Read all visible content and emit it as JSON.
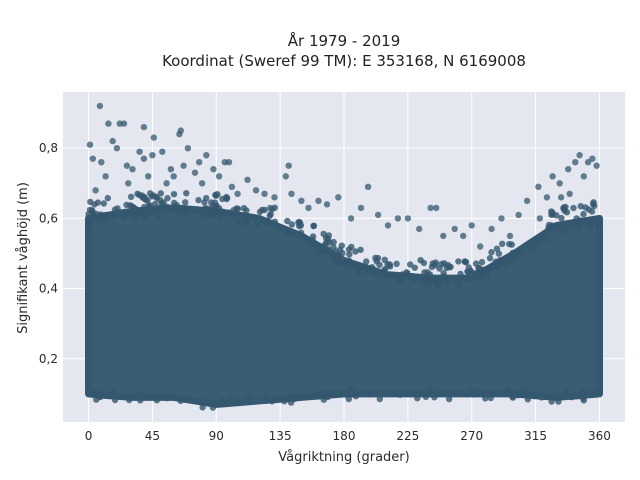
{
  "chart_data": {
    "type": "scatter",
    "title": "År 1979 - 2019",
    "subtitle": "Koordinat (Sweref 99 TM): E 353168, N 6169008",
    "xlabel": "Vågriktning (grader)",
    "ylabel": "Signifikant våghöjd (m)",
    "xlim": [
      -18,
      378
    ],
    "ylim": [
      0.02,
      0.96
    ],
    "xticks": [
      0,
      45,
      90,
      135,
      180,
      225,
      270,
      315,
      360
    ],
    "xtick_labels": [
      "0",
      "45",
      "90",
      "135",
      "180",
      "225",
      "270",
      "315",
      "360"
    ],
    "yticks": [
      0.2,
      0.4,
      0.6,
      0.8
    ],
    "ytick_labels": [
      "0,2",
      "0,4",
      "0,6",
      "0,8"
    ],
    "grid": true,
    "legend": "none",
    "colors": {
      "marker": "#34586f",
      "plot_bg": "#e5e7f0",
      "grid": "#ffffff"
    },
    "density_band": {
      "note_direction_deg": [
        0,
        30,
        60,
        90,
        120,
        150,
        180,
        210,
        240,
        270,
        300,
        330,
        360
      ],
      "dense_lower_m": [
        0.1,
        0.09,
        0.09,
        0.07,
        0.08,
        0.09,
        0.1,
        0.1,
        0.1,
        0.1,
        0.1,
        0.09,
        0.1
      ],
      "dense_upper_m": [
        0.6,
        0.62,
        0.63,
        0.62,
        0.6,
        0.55,
        0.48,
        0.44,
        0.43,
        0.43,
        0.5,
        0.58,
        0.6
      ]
    },
    "points": [
      [
        8,
        0.92
      ],
      [
        14,
        0.87
      ],
      [
        22,
        0.87
      ],
      [
        25,
        0.87
      ],
      [
        17,
        0.82
      ],
      [
        20,
        0.8
      ],
      [
        1,
        0.81
      ],
      [
        3,
        0.77
      ],
      [
        9,
        0.76
      ],
      [
        27,
        0.75
      ],
      [
        31,
        0.74
      ],
      [
        36,
        0.79
      ],
      [
        39,
        0.77
      ],
      [
        42,
        0.72
      ],
      [
        45,
        0.78
      ],
      [
        39,
        0.86
      ],
      [
        46,
        0.83
      ],
      [
        52,
        0.79
      ],
      [
        58,
        0.74
      ],
      [
        64,
        0.84
      ],
      [
        65,
        0.85
      ],
      [
        67,
        0.75
      ],
      [
        70,
        0.8
      ],
      [
        75,
        0.73
      ],
      [
        78,
        0.76
      ],
      [
        83,
        0.78
      ],
      [
        88,
        0.74
      ],
      [
        92,
        0.72
      ],
      [
        96,
        0.76
      ],
      [
        99,
        0.76
      ],
      [
        101,
        0.69
      ],
      [
        112,
        0.71
      ],
      [
        118,
        0.68
      ],
      [
        124,
        0.67
      ],
      [
        131,
        0.66
      ],
      [
        139,
        0.72
      ],
      [
        141,
        0.75
      ],
      [
        143,
        0.67
      ],
      [
        150,
        0.65
      ],
      [
        155,
        0.63
      ],
      [
        162,
        0.65
      ],
      [
        168,
        0.64
      ],
      [
        176,
        0.66
      ],
      [
        185,
        0.6
      ],
      [
        192,
        0.63
      ],
      [
        197,
        0.69
      ],
      [
        204,
        0.61
      ],
      [
        211,
        0.58
      ],
      [
        218,
        0.6
      ],
      [
        225,
        0.6
      ],
      [
        233,
        0.57
      ],
      [
        241,
        0.63
      ],
      [
        245,
        0.63
      ],
      [
        250,
        0.55
      ],
      [
        258,
        0.57
      ],
      [
        264,
        0.55
      ],
      [
        270,
        0.58
      ],
      [
        276,
        0.52
      ],
      [
        284,
        0.57
      ],
      [
        291,
        0.6
      ],
      [
        297,
        0.55
      ],
      [
        303,
        0.61
      ],
      [
        309,
        0.65
      ],
      [
        317,
        0.69
      ],
      [
        323,
        0.66
      ],
      [
        327,
        0.72
      ],
      [
        332,
        0.7
      ],
      [
        338,
        0.74
      ],
      [
        343,
        0.76
      ],
      [
        346,
        0.78
      ],
      [
        349,
        0.72
      ],
      [
        352,
        0.76
      ],
      [
        355,
        0.77
      ],
      [
        358,
        0.75
      ],
      [
        333,
        0.66
      ],
      [
        339,
        0.67
      ],
      [
        326,
        0.62
      ],
      [
        318,
        0.6
      ],
      [
        5,
        0.68
      ],
      [
        12,
        0.72
      ],
      [
        28,
        0.7
      ],
      [
        55,
        0.7
      ],
      [
        60,
        0.72
      ],
      [
        80,
        0.7
      ],
      [
        105,
        0.67
      ],
      [
        128,
        0.63
      ]
    ]
  }
}
